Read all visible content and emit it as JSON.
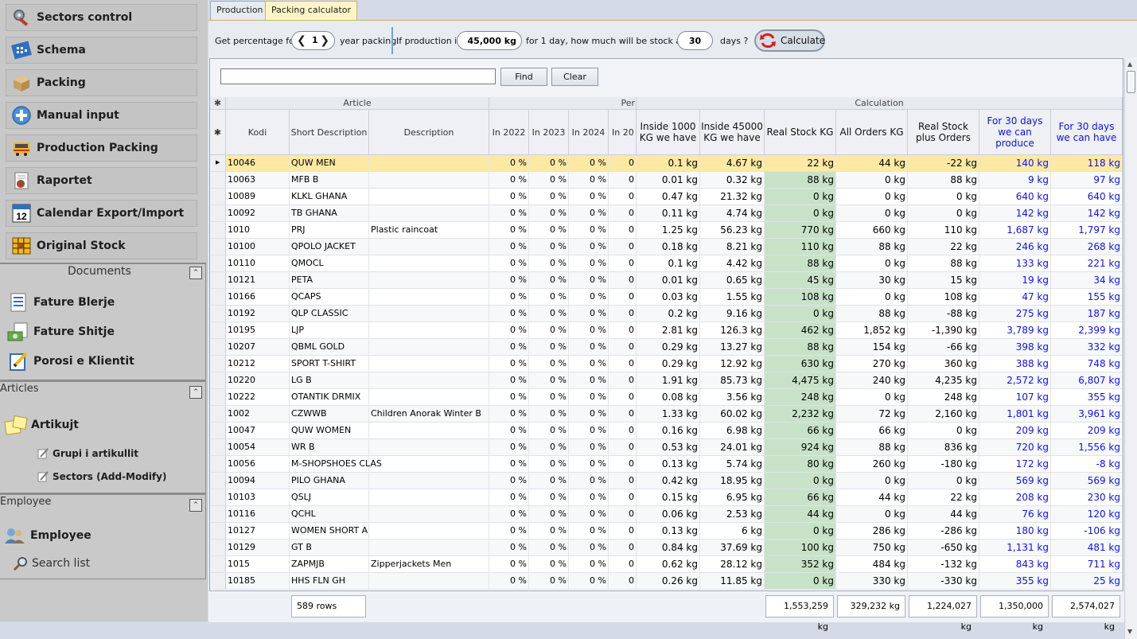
{
  "sidebar": {
    "nav": [
      {
        "label": "Sectors control",
        "icon": "tools-icon"
      },
      {
        "label": "Schema",
        "icon": "schema-icon"
      },
      {
        "label": "Packing",
        "icon": "box-icon"
      },
      {
        "label": "Manual input",
        "icon": "plus-circle-icon"
      },
      {
        "label": "Production Packing",
        "icon": "truck-icon"
      },
      {
        "label": "Raportet",
        "icon": "report-icon"
      },
      {
        "label": "Calendar Export/Import",
        "icon": "calendar-icon"
      },
      {
        "label": "Original Stock",
        "icon": "stock-grid-icon"
      }
    ],
    "calendar_icon_text": "12",
    "documents": {
      "title": "Documents",
      "items": [
        {
          "label": "Fature Blerje",
          "icon": "invoice-icon"
        },
        {
          "label": "Fature Shitje",
          "icon": "cash-invoice-icon"
        },
        {
          "label": "Porosi e Klientit",
          "icon": "order-edit-icon"
        }
      ]
    },
    "articles": {
      "title": "Articles",
      "main": "Artikujt",
      "subs": [
        "Grupi i artikullit",
        "Sectors (Add-Modify)"
      ]
    },
    "employee": {
      "title": "Employee",
      "main": "Employee",
      "sub": "Search list"
    },
    "collapse_glyph": "⌃"
  },
  "tabs": [
    {
      "label": "Production"
    },
    {
      "label": "Packing calculator"
    }
  ],
  "params": {
    "get_percentage_label": "Get percentage for",
    "year_value": "1",
    "year_packing_label": "year packing",
    "if_production_label": "If production is",
    "production_value": "45,000 kg",
    "for_day_label": "for 1 day, how much will be stock after",
    "days_value": "30",
    "days_label": "days ?",
    "calculate_label": "Calculate"
  },
  "search": {
    "value": "",
    "find_label": "Find",
    "clear_label": "Clear"
  },
  "grid": {
    "group_headers": {
      "article": "Article",
      "percentage": "Per",
      "calculation": "Calculation",
      "star": "✱"
    },
    "columns": {
      "kodi": "Kodi",
      "short": "Short Description",
      "desc": "Description",
      "y2022": "In 2022",
      "y2023": "In 2023",
      "y2024": "In 2024",
      "y20": "In 20",
      "inside1000": "Inside 1000 KG we have",
      "inside45000": "Inside 45000 KG we have",
      "realstock": "Real Stock KG",
      "allorders": "All Orders KG",
      "realplus": "Real Stock plus Orders",
      "produce": "For 30 days we can produce",
      "have": "For 30 days we can have"
    },
    "rows": [
      {
        "kodi": "10046",
        "short": "QUW MEN",
        "desc": "",
        "p1": "0 %",
        "p2": "0 %",
        "p3": "0 %",
        "p4": "0",
        "i1": "0.1 kg",
        "i2": "4.67 kg",
        "rs": "22 kg",
        "ao": "44 kg",
        "rp": "-22 kg",
        "pr": "140 kg",
        "hv": "118 kg"
      },
      {
        "kodi": "10063",
        "short": "MFB B",
        "desc": "",
        "p1": "0 %",
        "p2": "0 %",
        "p3": "0 %",
        "p4": "0",
        "i1": "0.01 kg",
        "i2": "0.32 kg",
        "rs": "88 kg",
        "ao": "0 kg",
        "rp": "88 kg",
        "pr": "9 kg",
        "hv": "97 kg"
      },
      {
        "kodi": "10089",
        "short": "KLKL GHANA",
        "desc": "",
        "p1": "0 %",
        "p2": "0 %",
        "p3": "0 %",
        "p4": "0",
        "i1": "0.47 kg",
        "i2": "21.32 kg",
        "rs": "0 kg",
        "ao": "0 kg",
        "rp": "0 kg",
        "pr": "640 kg",
        "hv": "640 kg"
      },
      {
        "kodi": "10092",
        "short": "TB GHANA",
        "desc": "",
        "p1": "0 %",
        "p2": "0 %",
        "p3": "0 %",
        "p4": "0",
        "i1": "0.11 kg",
        "i2": "4.74 kg",
        "rs": "0 kg",
        "ao": "0 kg",
        "rp": "0 kg",
        "pr": "142 kg",
        "hv": "142 kg"
      },
      {
        "kodi": "1010",
        "short": "PRJ",
        "desc": "Plastic raincoat",
        "p1": "0 %",
        "p2": "0 %",
        "p3": "0 %",
        "p4": "0",
        "i1": "1.25 kg",
        "i2": "56.23 kg",
        "rs": "770 kg",
        "ao": "660 kg",
        "rp": "110 kg",
        "pr": "1,687 kg",
        "hv": "1,797 kg"
      },
      {
        "kodi": "10100",
        "short": "QPOLO JACKET",
        "desc": "",
        "p1": "0 %",
        "p2": "0 %",
        "p3": "0 %",
        "p4": "0",
        "i1": "0.18 kg",
        "i2": "8.21 kg",
        "rs": "110 kg",
        "ao": "88 kg",
        "rp": "22 kg",
        "pr": "246 kg",
        "hv": "268 kg"
      },
      {
        "kodi": "10110",
        "short": "QMOCL",
        "desc": "",
        "p1": "0 %",
        "p2": "0 %",
        "p3": "0 %",
        "p4": "0",
        "i1": "0.1 kg",
        "i2": "4.42 kg",
        "rs": "88 kg",
        "ao": "0 kg",
        "rp": "88 kg",
        "pr": "133 kg",
        "hv": "221 kg"
      },
      {
        "kodi": "10121",
        "short": "PETA",
        "desc": "",
        "p1": "0 %",
        "p2": "0 %",
        "p3": "0 %",
        "p4": "0",
        "i1": "0.01 kg",
        "i2": "0.65 kg",
        "rs": "45 kg",
        "ao": "30 kg",
        "rp": "15 kg",
        "pr": "19 kg",
        "hv": "34 kg"
      },
      {
        "kodi": "10166",
        "short": "QCAPS",
        "desc": "",
        "p1": "0 %",
        "p2": "0 %",
        "p3": "0 %",
        "p4": "0",
        "i1": "0.03 kg",
        "i2": "1.55 kg",
        "rs": "108 kg",
        "ao": "0 kg",
        "rp": "108 kg",
        "pr": "47 kg",
        "hv": "155 kg"
      },
      {
        "kodi": "10192",
        "short": "QLP CLASSIC",
        "desc": "",
        "p1": "0 %",
        "p2": "0 %",
        "p3": "0 %",
        "p4": "0",
        "i1": "0.2 kg",
        "i2": "9.16 kg",
        "rs": "0 kg",
        "ao": "88 kg",
        "rp": "-88 kg",
        "pr": "275 kg",
        "hv": "187 kg"
      },
      {
        "kodi": "10195",
        "short": "LJP",
        "desc": "",
        "p1": "0 %",
        "p2": "0 %",
        "p3": "0 %",
        "p4": "0",
        "i1": "2.81 kg",
        "i2": "126.3 kg",
        "rs": "462 kg",
        "ao": "1,852 kg",
        "rp": "-1,390 kg",
        "pr": "3,789 kg",
        "hv": "2,399 kg"
      },
      {
        "kodi": "10207",
        "short": "QBML GOLD",
        "desc": "",
        "p1": "0 %",
        "p2": "0 %",
        "p3": "0 %",
        "p4": "0",
        "i1": "0.29 kg",
        "i2": "13.27 kg",
        "rs": "88 kg",
        "ao": "154 kg",
        "rp": "-66 kg",
        "pr": "398 kg",
        "hv": "332 kg"
      },
      {
        "kodi": "10212",
        "short": "SPORT T-SHIRT",
        "desc": "",
        "p1": "0 %",
        "p2": "0 %",
        "p3": "0 %",
        "p4": "0",
        "i1": "0.29 kg",
        "i2": "12.92 kg",
        "rs": "630 kg",
        "ao": "270 kg",
        "rp": "360 kg",
        "pr": "388 kg",
        "hv": "748 kg"
      },
      {
        "kodi": "10220",
        "short": "LG B",
        "desc": "",
        "p1": "0 %",
        "p2": "0 %",
        "p3": "0 %",
        "p4": "0",
        "i1": "1.91 kg",
        "i2": "85.73 kg",
        "rs": "4,475 kg",
        "ao": "240 kg",
        "rp": "4,235 kg",
        "pr": "2,572 kg",
        "hv": "6,807 kg"
      },
      {
        "kodi": "10222",
        "short": "OTANTIK DRMIX",
        "desc": "",
        "p1": "0 %",
        "p2": "0 %",
        "p3": "0 %",
        "p4": "0",
        "i1": "0.08 kg",
        "i2": "3.56 kg",
        "rs": "248 kg",
        "ao": "0 kg",
        "rp": "248 kg",
        "pr": "107 kg",
        "hv": "355 kg"
      },
      {
        "kodi": "1002",
        "short": "CZWWB",
        "desc": "Children Anorak Winter B",
        "p1": "0 %",
        "p2": "0 %",
        "p3": "0 %",
        "p4": "0",
        "i1": "1.33 kg",
        "i2": "60.02 kg",
        "rs": "2,232 kg",
        "ao": "72 kg",
        "rp": "2,160 kg",
        "pr": "1,801 kg",
        "hv": "3,961 kg"
      },
      {
        "kodi": "10047",
        "short": "QUW WOMEN",
        "desc": "",
        "p1": "0 %",
        "p2": "0 %",
        "p3": "0 %",
        "p4": "0",
        "i1": "0.16 kg",
        "i2": "6.98 kg",
        "rs": "66 kg",
        "ao": "66 kg",
        "rp": "0 kg",
        "pr": "209 kg",
        "hv": "209 kg"
      },
      {
        "kodi": "10054",
        "short": "WR B",
        "desc": "",
        "p1": "0 %",
        "p2": "0 %",
        "p3": "0 %",
        "p4": "0",
        "i1": "0.53 kg",
        "i2": "24.01 kg",
        "rs": "924 kg",
        "ao": "88 kg",
        "rp": "836 kg",
        "pr": "720 kg",
        "hv": "1,556 kg"
      },
      {
        "kodi": "10056",
        "short": "M-SHOPSHOES CLAS",
        "desc": "",
        "p1": "0 %",
        "p2": "0 %",
        "p3": "0 %",
        "p4": "0",
        "i1": "0.13 kg",
        "i2": "5.74 kg",
        "rs": "80 kg",
        "ao": "260 kg",
        "rp": "-180 kg",
        "pr": "172 kg",
        "hv": "-8 kg"
      },
      {
        "kodi": "10094",
        "short": "PILO GHANA",
        "desc": "",
        "p1": "0 %",
        "p2": "0 %",
        "p3": "0 %",
        "p4": "0",
        "i1": "0.42 kg",
        "i2": "18.95 kg",
        "rs": "0 kg",
        "ao": "0 kg",
        "rp": "0 kg",
        "pr": "569 kg",
        "hv": "569 kg"
      },
      {
        "kodi": "10103",
        "short": "QSLJ",
        "desc": "",
        "p1": "0 %",
        "p2": "0 %",
        "p3": "0 %",
        "p4": "0",
        "i1": "0.15 kg",
        "i2": "6.95 kg",
        "rs": "66 kg",
        "ao": "44 kg",
        "rp": "22 kg",
        "pr": "208 kg",
        "hv": "230 kg"
      },
      {
        "kodi": "10116",
        "short": "QCHL",
        "desc": "",
        "p1": "0 %",
        "p2": "0 %",
        "p3": "0 %",
        "p4": "0",
        "i1": "0.06 kg",
        "i2": "2.53 kg",
        "rs": "44 kg",
        "ao": "0 kg",
        "rp": "44 kg",
        "pr": "76 kg",
        "hv": "120 kg"
      },
      {
        "kodi": "10127",
        "short": "WOMEN SHORT A",
        "desc": "",
        "p1": "0 %",
        "p2": "0 %",
        "p3": "0 %",
        "p4": "0",
        "i1": "0.13 kg",
        "i2": "6 kg",
        "rs": "0 kg",
        "ao": "286 kg",
        "rp": "-286 kg",
        "pr": "180 kg",
        "hv": "-106 kg"
      },
      {
        "kodi": "10129",
        "short": "GT B",
        "desc": "",
        "p1": "0 %",
        "p2": "0 %",
        "p3": "0 %",
        "p4": "0",
        "i1": "0.84 kg",
        "i2": "37.69 kg",
        "rs": "100 kg",
        "ao": "750 kg",
        "rp": "-650 kg",
        "pr": "1,131 kg",
        "hv": "481 kg"
      },
      {
        "kodi": "1015",
        "short": "ZAPMJB",
        "desc": "Zipperjackets Men",
        "p1": "0 %",
        "p2": "0 %",
        "p3": "0 %",
        "p4": "0",
        "i1": "0.62 kg",
        "i2": "28.12 kg",
        "rs": "352 kg",
        "ao": "484 kg",
        "rp": "-132 kg",
        "pr": "843 kg",
        "hv": "711 kg"
      },
      {
        "kodi": "10185",
        "short": "HHS FLN GH",
        "desc": "",
        "p1": "0 %",
        "p2": "0 %",
        "p3": "0 %",
        "p4": "0",
        "i1": "0.26 kg",
        "i2": "11.85 kg",
        "rs": "0 kg",
        "ao": "330 kg",
        "rp": "-330 kg",
        "pr": "355 kg",
        "hv": "25 kg"
      }
    ]
  },
  "footer": {
    "rows_count": "589 rows",
    "sum_realstock": "1,553,259 kg",
    "sum_allorders": "329,232 kg",
    "sum_realplus": "1,224,027 kg",
    "sum_produce": "1,350,000 kg",
    "sum_have": "2,574,027 kg"
  },
  "colors": {
    "accent_blue": "#1010ee",
    "stock_green": "#c8e2c8",
    "selected_row": "#fde9a4"
  }
}
